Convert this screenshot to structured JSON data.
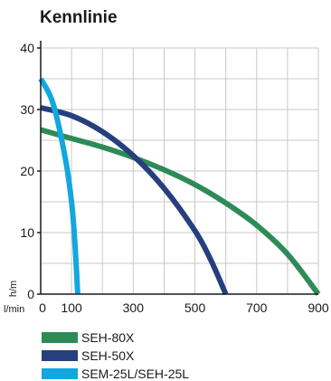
{
  "chart_data": {
    "type": "line",
    "title": "Kennlinie",
    "ylabel": "h/m",
    "xlabel": "l/min",
    "xlim": [
      0,
      900
    ],
    "ylim": [
      0,
      40
    ],
    "x_ticks": [
      0,
      100,
      300,
      500,
      700,
      900
    ],
    "y_ticks": [
      0,
      10,
      20,
      30,
      40
    ],
    "x_tick_labels": [
      "0",
      "100",
      "300",
      "500",
      "700",
      "900"
    ],
    "y_tick_labels": [
      "0",
      "10",
      "20",
      "30",
      "40"
    ],
    "grid": true,
    "legend_position": "bottom-left",
    "series": [
      {
        "name": "SEH-80X",
        "color": "#2e8b57",
        "x": [
          0,
          100,
          200,
          300,
          400,
          500,
          600,
          700,
          800,
          900
        ],
        "y": [
          26.7,
          25.3,
          23.9,
          22.2,
          20.2,
          17.8,
          14.8,
          11.2,
          6.5,
          0
        ]
      },
      {
        "name": "SEH-50X",
        "color": "#263f7d",
        "x": [
          0,
          100,
          200,
          300,
          400,
          500,
          550,
          600
        ],
        "y": [
          30.3,
          29.0,
          26.4,
          22.5,
          17.2,
          10.3,
          5.7,
          0
        ]
      },
      {
        "name": "SEM-25L/SEH-25L",
        "color": "#12a7df",
        "x": [
          0,
          40,
          80,
          100,
          110,
          120
        ],
        "y": [
          35,
          31,
          22,
          15,
          9,
          0
        ]
      }
    ]
  }
}
